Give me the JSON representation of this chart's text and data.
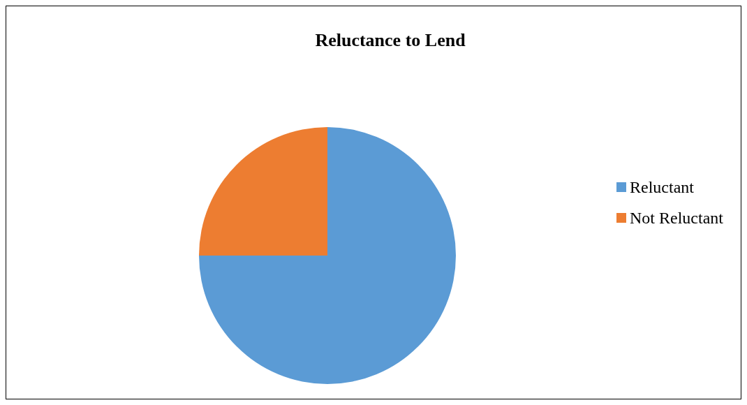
{
  "chart_data": {
    "type": "pie",
    "title": "Reluctance to Lend",
    "categories": [
      "Reluctant",
      "Not Reluctant"
    ],
    "values": [
      75,
      25
    ],
    "colors": [
      "#5b9bd5",
      "#ed7d31"
    ],
    "legend": "right"
  }
}
